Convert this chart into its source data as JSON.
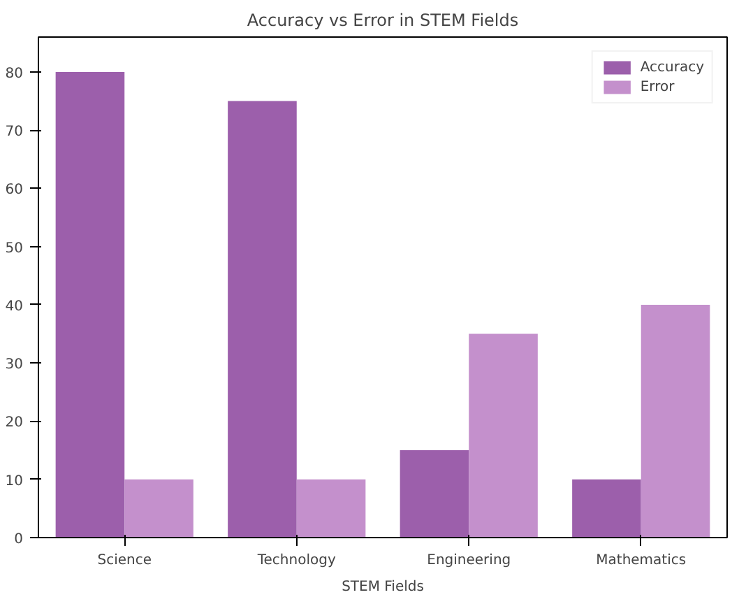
{
  "chart_data": {
    "type": "bar",
    "title": "Accuracy vs Error in STEM Fields",
    "xlabel": "STEM Fields",
    "categories": [
      "Science",
      "Technology",
      "Engineering",
      "Mathematics"
    ],
    "series": [
      {
        "name": "Accuracy",
        "color": "#9c5fab",
        "values": [
          80,
          75,
          15,
          10
        ]
      },
      {
        "name": "Error",
        "color": "#c490cc",
        "values": [
          10,
          10,
          35,
          40
        ]
      }
    ],
    "ylim": [
      0,
      86
    ],
    "yticks": [
      0,
      10,
      20,
      30,
      40,
      50,
      60,
      70,
      80
    ],
    "grid": false,
    "legend": "top right"
  }
}
